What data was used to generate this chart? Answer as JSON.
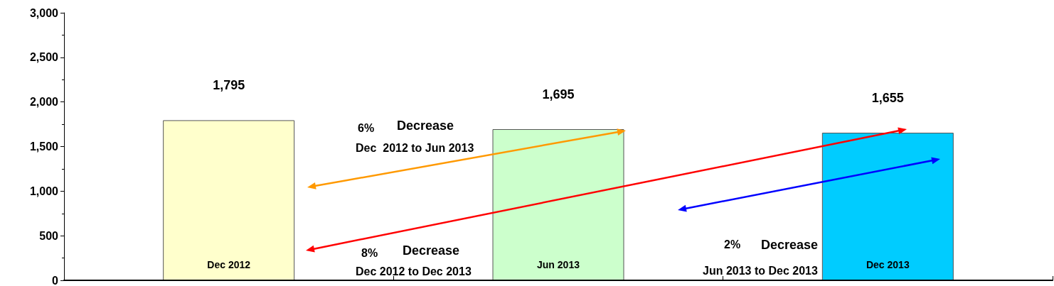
{
  "chart_data": {
    "type": "bar",
    "categories": [
      "Dec 2012",
      "Jun 2013",
      "Dec 2013"
    ],
    "values": [
      1795,
      1695,
      1655
    ],
    "colors": [
      "#ffffcc",
      "#ccffcc",
      "#00ccff"
    ],
    "value_labels": [
      "1,795",
      "1,695",
      "1,655"
    ],
    "ylim": [
      0,
      3000
    ],
    "yticks": [
      0,
      500,
      {
        "value": 1000,
        "label": "1,000"
      },
      {
        "value": 1500,
        "label": "1,500"
      },
      {
        "value": 2000,
        "label": "2,000"
      },
      {
        "value": 2500,
        "label": "2,500"
      },
      {
        "value": 3000,
        "label": "3,000"
      }
    ],
    "grid": false,
    "annotations": [
      "6%",
      "Decrease",
      "Dec  2012 to Jun 2013",
      "8%",
      "Decrease",
      "Dec 2012 to Dec 2013",
      "2%",
      "Decrease",
      "Jun 2013 to Dec 2013"
    ]
  }
}
